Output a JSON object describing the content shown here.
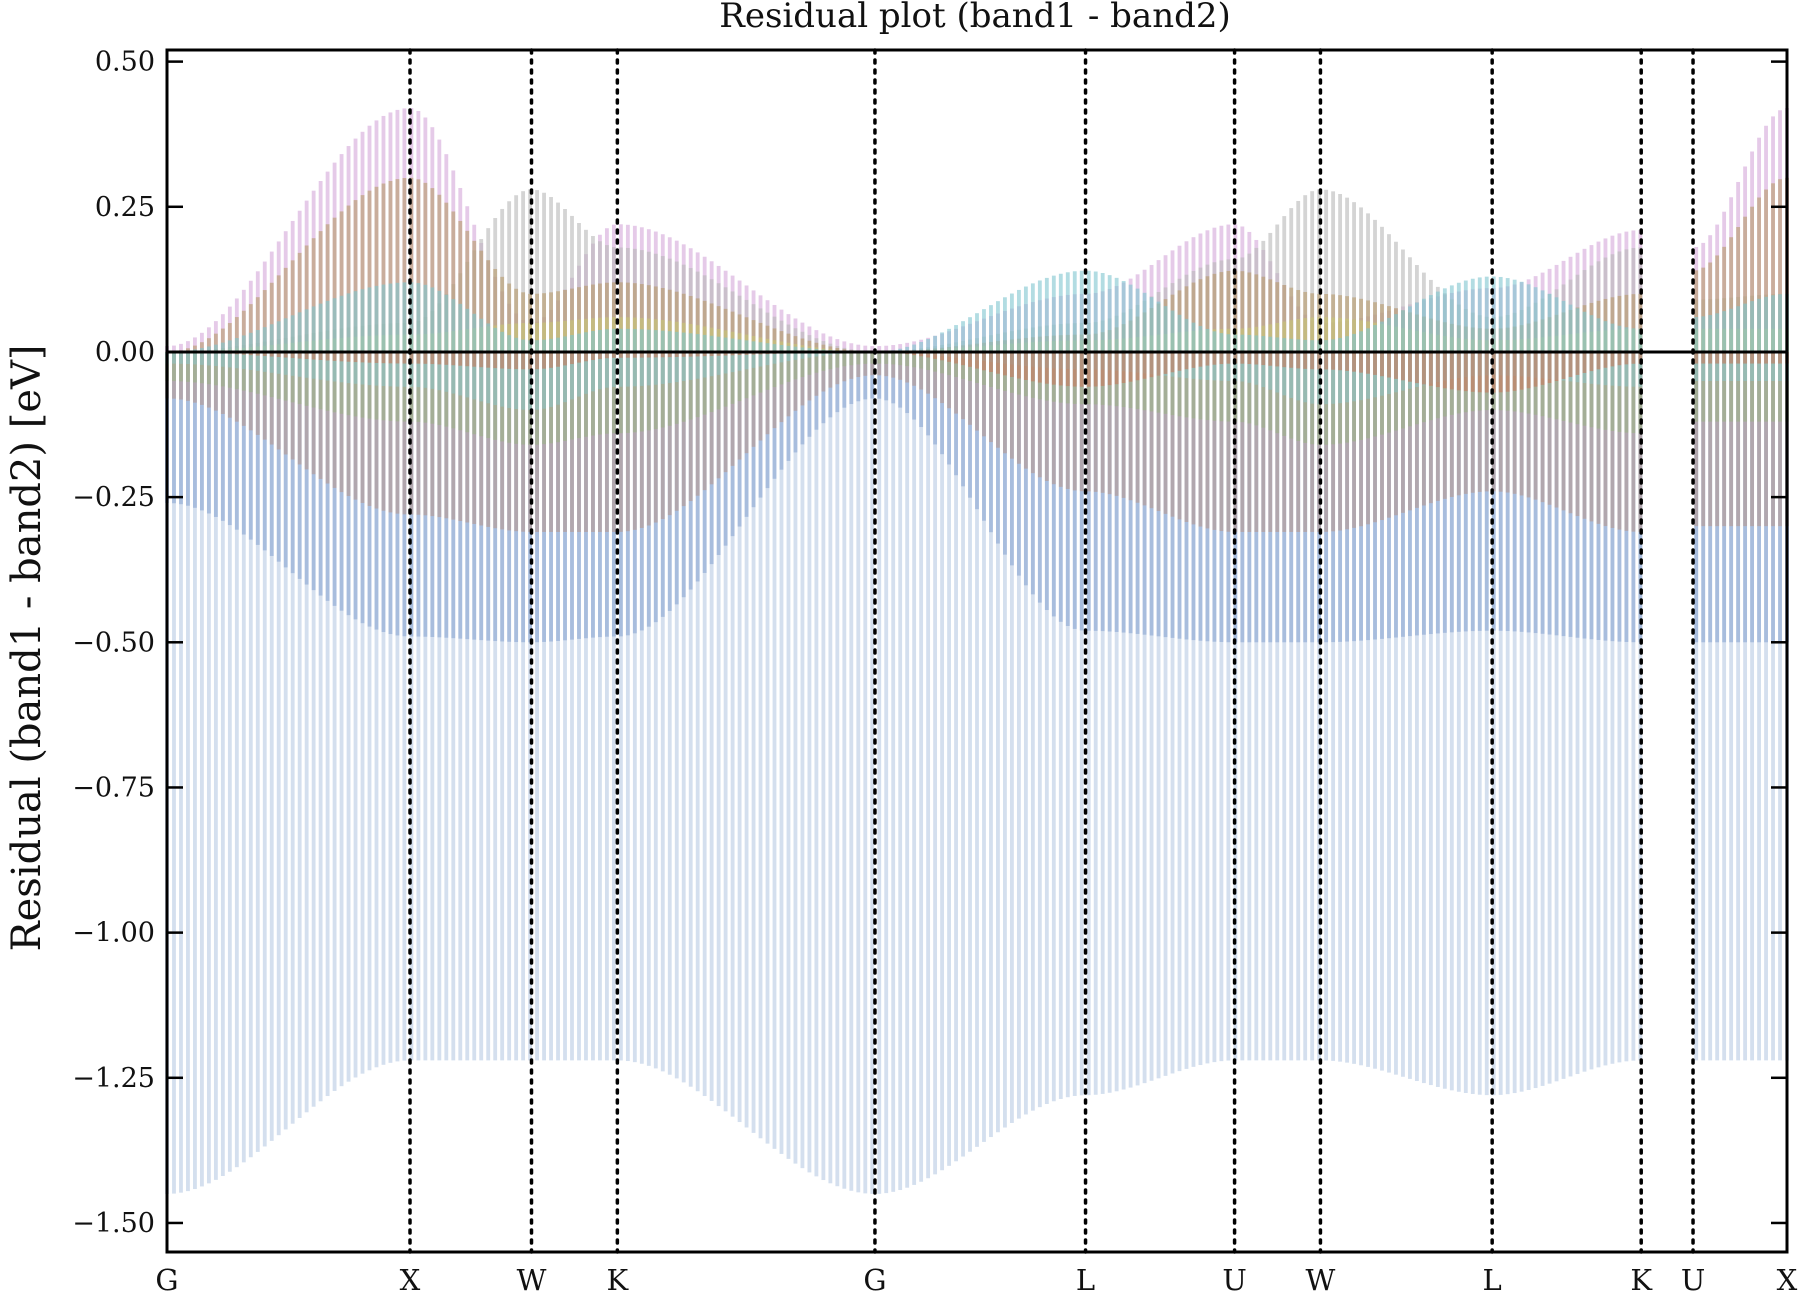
{
  "chart_data": {
    "type": "bar",
    "title": "Residual plot (band1 - band2)",
    "ylabel": "Residual (band1 - band2) [eV]",
    "xlabel": "",
    "ylim": [
      -1.55,
      0.52
    ],
    "yticks": [
      0.5,
      0.25,
      0.0,
      -0.25,
      -0.5,
      -0.75,
      -1.0,
      -1.25,
      -1.5
    ],
    "ytick_labels": [
      "0.50",
      "0.25",
      "0.00",
      "−0.25",
      "−0.50",
      "−0.75",
      "−1.00",
      "−1.25",
      "−1.50"
    ],
    "x_range": [
      0,
      10
    ],
    "grid": false,
    "legend": "none",
    "zero_line": true,
    "high_symmetry_points": [
      {
        "label": "G",
        "x": 0.0
      },
      {
        "label": "X",
        "x": 1.5
      },
      {
        "label": "W",
        "x": 2.25
      },
      {
        "label": "K",
        "x": 2.78
      },
      {
        "label": "G",
        "x": 4.37
      },
      {
        "label": "L",
        "x": 5.67
      },
      {
        "label": "U",
        "x": 6.59
      },
      {
        "label": "W",
        "x": 7.12
      },
      {
        "label": "L",
        "x": 8.18
      },
      {
        "label": "K",
        "x": 9.1
      },
      {
        "label": "U",
        "x": 9.42
      },
      {
        "label": "X",
        "x": 10.0
      }
    ],
    "break_between": [
      9.1,
      9.42
    ],
    "series": [
      {
        "color": "#b8cbe4",
        "values_at_points": [
          -1.45,
          -1.22,
          -1.22,
          -1.22,
          -1.45,
          -1.28,
          -1.22,
          -1.22,
          -1.28,
          -1.22,
          -1.22,
          -1.22
        ]
      },
      {
        "color": "#8ba7d3",
        "values_at_points": [
          -0.26,
          -0.49,
          -0.5,
          -0.49,
          -0.08,
          -0.48,
          -0.5,
          -0.5,
          -0.48,
          -0.5,
          -0.5,
          -0.5
        ]
      },
      {
        "color": "#b89a8f",
        "values_at_points": [
          -0.08,
          -0.28,
          -0.31,
          -0.31,
          -0.04,
          -0.24,
          -0.31,
          -0.31,
          -0.24,
          -0.31,
          -0.3,
          -0.3
        ]
      },
      {
        "color": "#9db488",
        "values_at_points": [
          -0.05,
          -0.12,
          -0.16,
          -0.14,
          -0.02,
          -0.09,
          -0.12,
          -0.16,
          -0.1,
          -0.14,
          -0.12,
          -0.12
        ]
      },
      {
        "color": "#8fc2c4",
        "values_at_points": [
          -0.02,
          -0.06,
          -0.1,
          -0.06,
          0.0,
          -0.03,
          -0.05,
          -0.09,
          -0.04,
          -0.06,
          -0.05,
          -0.05
        ]
      },
      {
        "color": "#c77a5d",
        "values_at_points": [
          0.0,
          -0.02,
          -0.03,
          -0.01,
          0.0,
          -0.06,
          -0.02,
          -0.03,
          -0.07,
          -0.02,
          -0.02,
          -0.02
        ]
      },
      {
        "color": "#d4a7da",
        "values_at_points": [
          0.01,
          0.42,
          0.05,
          0.22,
          0.01,
          0.1,
          0.22,
          0.05,
          0.11,
          0.21,
          0.18,
          0.42
        ]
      },
      {
        "color": "#b9b9b9",
        "values_at_points": [
          0.0,
          0.05,
          0.28,
          0.18,
          0.0,
          0.05,
          0.16,
          0.28,
          0.06,
          0.18,
          0.09,
          0.1
        ]
      },
      {
        "color": "#b89a6a",
        "values_at_points": [
          0.0,
          0.3,
          0.1,
          0.12,
          0.0,
          0.03,
          0.14,
          0.1,
          0.04,
          0.1,
          0.14,
          0.3
        ]
      },
      {
        "color": "#c8c777",
        "values_at_points": [
          0.0,
          0.03,
          0.05,
          0.06,
          0.0,
          0.02,
          0.04,
          0.06,
          0.02,
          0.04,
          0.04,
          0.04
        ]
      },
      {
        "color": "#7fc6d0",
        "values_at_points": [
          0.0,
          0.12,
          0.02,
          0.04,
          0.0,
          0.14,
          0.03,
          0.02,
          0.13,
          0.04,
          0.06,
          0.1
        ]
      }
    ]
  }
}
